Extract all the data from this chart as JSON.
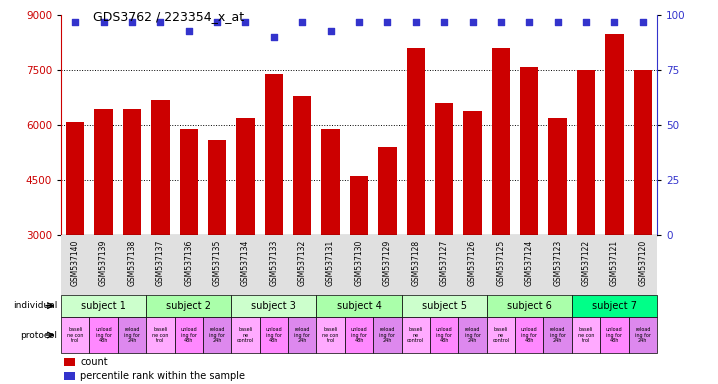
{
  "title": "GDS3762 / 223354_x_at",
  "bar_values": [
    6100,
    6450,
    6450,
    6700,
    5900,
    5600,
    6200,
    7400,
    6800,
    5900,
    4600,
    5400,
    8100,
    6600,
    6400,
    8100,
    7600,
    6200,
    7500,
    8500,
    7500
  ],
  "percentile_values": [
    97,
    97,
    97,
    97,
    93,
    97,
    97,
    90,
    97,
    93,
    97,
    97,
    97,
    97,
    97,
    97,
    97,
    97,
    97,
    97,
    97
  ],
  "sample_labels": [
    "GSM537140",
    "GSM537139",
    "GSM537138",
    "GSM537137",
    "GSM537136",
    "GSM537135",
    "GSM537134",
    "GSM537133",
    "GSM537132",
    "GSM537131",
    "GSM537130",
    "GSM537129",
    "GSM537128",
    "GSM537127",
    "GSM537126",
    "GSM537125",
    "GSM537124",
    "GSM537123",
    "GSM537122",
    "GSM537121",
    "GSM537120"
  ],
  "subjects": [
    {
      "label": "subject 1",
      "start": 0,
      "end": 3,
      "color": "#ccffcc"
    },
    {
      "label": "subject 2",
      "start": 3,
      "end": 6,
      "color": "#aaffaa"
    },
    {
      "label": "subject 3",
      "start": 6,
      "end": 9,
      "color": "#ccffcc"
    },
    {
      "label": "subject 4",
      "start": 9,
      "end": 12,
      "color": "#aaffaa"
    },
    {
      "label": "subject 5",
      "start": 12,
      "end": 15,
      "color": "#ccffcc"
    },
    {
      "label": "subject 6",
      "start": 15,
      "end": 18,
      "color": "#aaffaa"
    },
    {
      "label": "subject 7",
      "start": 18,
      "end": 21,
      "color": "#00ff88"
    }
  ],
  "protocols": [
    {
      "short": "baseli\nne con\ntrol",
      "type": "baseline"
    },
    {
      "short": "unload\ning for\n48h",
      "type": "unload"
    },
    {
      "short": "reload\ning for\n24h",
      "type": "reload"
    },
    {
      "short": "baseli\nne con\ntrol",
      "type": "baseline"
    },
    {
      "short": "unload\ning for\n48h",
      "type": "unload"
    },
    {
      "short": "reload\ning for\n24h",
      "type": "reload"
    },
    {
      "short": "baseli\nne\ncontrol",
      "type": "baseline"
    },
    {
      "short": "unload\ning for\n48h",
      "type": "unload"
    },
    {
      "short": "reload\ning for\n24h",
      "type": "reload"
    },
    {
      "short": "baseli\nne con\ntrol",
      "type": "baseline"
    },
    {
      "short": "unload\ning for\n48h",
      "type": "unload"
    },
    {
      "short": "reload\ning for\n24h",
      "type": "reload"
    },
    {
      "short": "baseli\nne\ncontrol",
      "type": "baseline"
    },
    {
      "short": "unload\ning for\n48h",
      "type": "unload"
    },
    {
      "short": "reload\ning for\n24h",
      "type": "reload"
    },
    {
      "short": "baseli\nne\ncontrol",
      "type": "baseline"
    },
    {
      "short": "unload\ning for\n48h",
      "type": "unload"
    },
    {
      "short": "reload\ning for\n24h",
      "type": "reload"
    },
    {
      "short": "baseli\nne con\ntrol",
      "type": "baseline"
    },
    {
      "short": "unload\ning for\n48h",
      "type": "unload"
    },
    {
      "short": "reload\ning for\n24h",
      "type": "reload"
    }
  ],
  "protocol_colors": {
    "baseline": "#ffaaff",
    "unload": "#ff88ff",
    "reload": "#dd88ee"
  },
  "bar_color": "#cc0000",
  "dot_color": "#3333cc",
  "ylim_left": [
    3000,
    9000
  ],
  "ylim_right": [
    0,
    100
  ],
  "yticks_left": [
    3000,
    4500,
    6000,
    7500,
    9000
  ],
  "yticks_right": [
    0,
    25,
    50,
    75,
    100
  ],
  "grid_values": [
    4500,
    6000,
    7500
  ],
  "bg_color": "#ffffff",
  "left_label_color": "#cc0000",
  "right_label_color": "#3333cc",
  "gray_bg": "#e0e0e0"
}
